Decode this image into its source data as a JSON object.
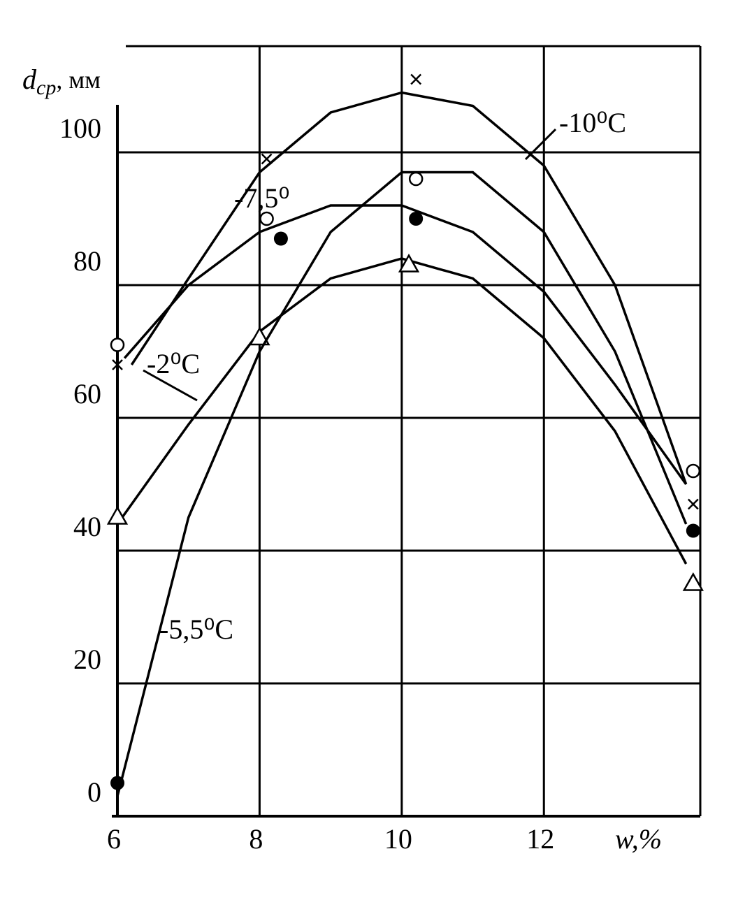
{
  "chart_data": {
    "type": "line",
    "y_label": {
      "main": "d",
      "sub": "ср",
      "unit": ", мм"
    },
    "x_label": "w,%",
    "xlim": [
      6,
      14.2
    ],
    "xticks": [
      6,
      8,
      10,
      12
    ],
    "ylim": [
      0,
      116
    ],
    "yticks": [
      0,
      20,
      40,
      60,
      80,
      100
    ],
    "grid": true,
    "series": [
      {
        "name": "-10⁰C",
        "color": "#000000",
        "marker": "cross",
        "x": [
          6,
          8.1,
          10.2,
          14.1
        ],
        "values": [
          68,
          99,
          111,
          47
        ],
        "curve_x": [
          6.2,
          7,
          8,
          9,
          10,
          11,
          12,
          13,
          14
        ],
        "curve_values": [
          68,
          81,
          97,
          106,
          109,
          107,
          98,
          80,
          50
        ]
      },
      {
        "name": "-7,5⁰",
        "color": "#000000",
        "marker": "open-circle",
        "x": [
          6,
          8.1,
          10.2,
          14.1
        ],
        "values": [
          71,
          90,
          96,
          52
        ],
        "curve_x": [
          6.1,
          7,
          8,
          9,
          10,
          11,
          12,
          13,
          14
        ],
        "curve_values": [
          69,
          80,
          88,
          92,
          92,
          88,
          79,
          65,
          50
        ]
      },
      {
        "name": "-2⁰C",
        "color": "#000000",
        "marker": "triangle",
        "x": [
          6,
          8,
          10.1,
          14.1
        ],
        "values": [
          45,
          72,
          83,
          35
        ],
        "curve_x": [
          6,
          7,
          8,
          9,
          10,
          11,
          12,
          13,
          14
        ],
        "curve_values": [
          44,
          59,
          73,
          81,
          84,
          81,
          72,
          58,
          38
        ]
      },
      {
        "name": "-5,5⁰C",
        "color": "#000000",
        "marker": "filled-circle",
        "x": [
          6,
          8.3,
          10.2,
          14.1
        ],
        "values": [
          5,
          87,
          90,
          43
        ],
        "curve_x": [
          6,
          7,
          8,
          9,
          10,
          11,
          12,
          13,
          14
        ],
        "curve_values": [
          3,
          45,
          70,
          88,
          97,
          97,
          88,
          70,
          44
        ]
      }
    ]
  }
}
